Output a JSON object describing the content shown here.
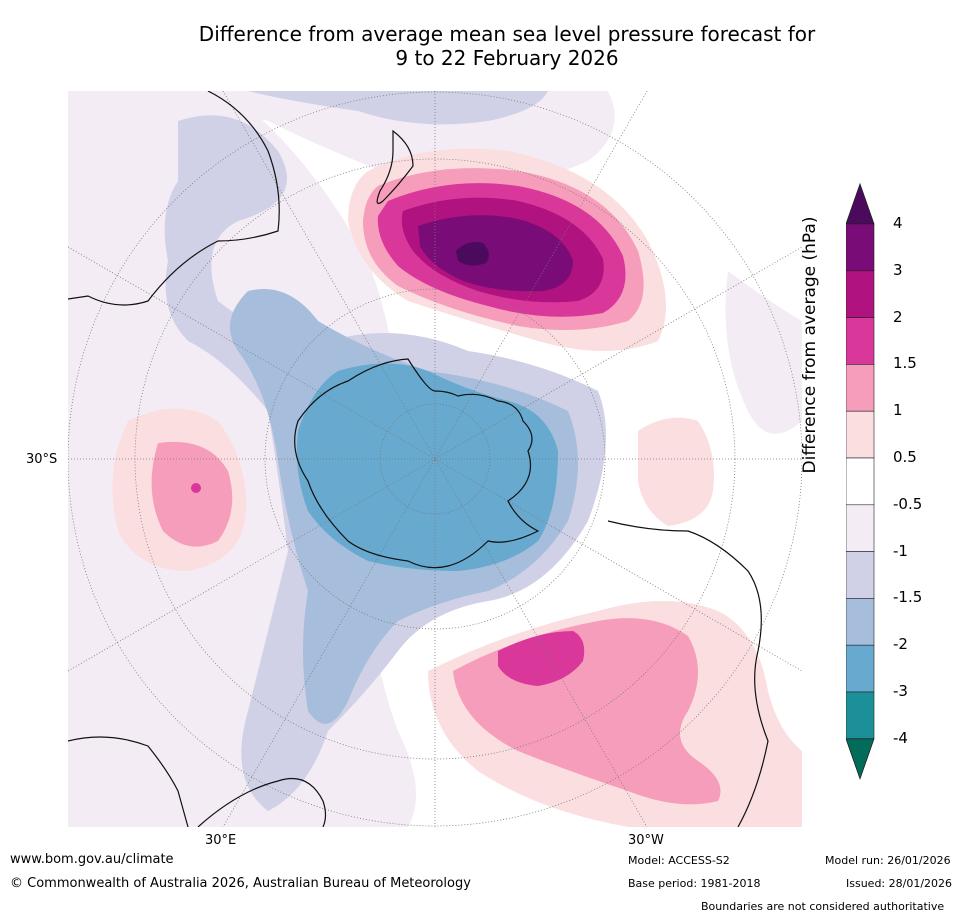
{
  "title": {
    "line1": "Difference from average mean sea level pressure forecast for",
    "line2": "9 to 22 February 2026"
  },
  "map": {
    "projection": "south-polar-stereographic",
    "lat_label": "30°S",
    "lon_labels": [
      "30°E",
      "30°W"
    ],
    "anomaly_regions": [
      {
        "area": "south-west Pacific, east of New Zealand",
        "class": "2 to 4",
        "peak": "4 to 4+"
      },
      {
        "area": "south Indian Ocean",
        "class": "0.5 to 1.5",
        "peak": "2"
      },
      {
        "area": "south Atlantic Ocean",
        "class": "0.5 to 1.5",
        "peak": "2"
      },
      {
        "area": "Antarctica",
        "class": "-3 to -2"
      }
    ],
    "colors": {
      "ocean": "#ffffff",
      "grid": "#7a7a7a",
      "coast": "#111111"
    }
  },
  "colorbar": {
    "title": "Difference from average (hPa)",
    "labels": [
      "4",
      "3",
      "2",
      "1.5",
      "1",
      "0.5",
      "-0.5",
      "-1",
      "-1.5",
      "-2",
      "-3",
      "-4"
    ],
    "bins": [
      {
        "range": ">4",
        "color": "#4b0a5e"
      },
      {
        "range": "3 to 4",
        "color": "#7a0c77"
      },
      {
        "range": "2 to 3",
        "color": "#b0127f"
      },
      {
        "range": "1.5 to 2",
        "color": "#d9379a"
      },
      {
        "range": "1 to 1.5",
        "color": "#f59dba"
      },
      {
        "range": "0.5 to 1",
        "color": "#fbdfe0"
      },
      {
        "range": "-0.5 to 0.5",
        "color": "#ffffff"
      },
      {
        "range": "-1 to -0.5",
        "color": "#f3ecf5"
      },
      {
        "range": "-1.5 to -1",
        "color": "#d0d1e6"
      },
      {
        "range": "-2 to -1.5",
        "color": "#a6bddb"
      },
      {
        "range": "-3 to -2",
        "color": "#67a9cf"
      },
      {
        "range": "-4 to -3",
        "color": "#1c9099"
      },
      {
        "range": "<-4",
        "color": "#016c59"
      }
    ]
  },
  "footer": {
    "website": "www.bom.gov.au/climate",
    "copyright": "© Commonwealth of Australia 2026, Australian Bureau of Meteorology",
    "model": "Model: ACCESS-S2",
    "base_period": "Base period: 1981-2018",
    "model_run": "Model run: 26/01/2026",
    "issued": "Issued: 28/01/2026",
    "disclaimer": "Boundaries are not considered authoritative"
  }
}
